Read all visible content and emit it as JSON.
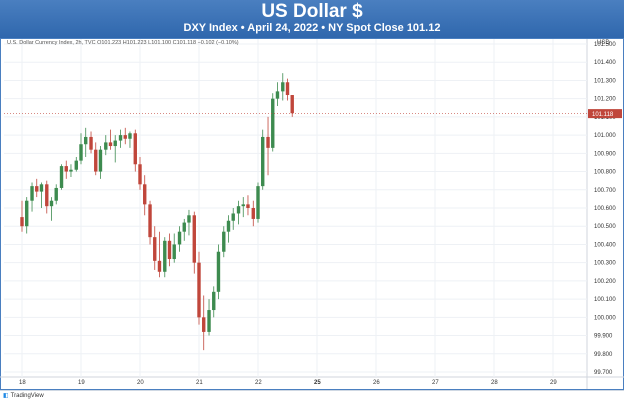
{
  "header": {
    "title": "US Dollar $",
    "subtitle": "DXY Index • April 24, 2022 • NY Spot Close 101.12"
  },
  "chart_header": {
    "series_label": "U.S. Dollar Currency Index, 2h, TVC  O101.223  H101.223  L101.100  C101.118  −0.102 (−0.10%)",
    "currency": "USD"
  },
  "footer": {
    "brand": "TradingView"
  },
  "colors": {
    "up": "#3d8b4f",
    "down": "#c0463b",
    "grid": "#eef1f5",
    "axis_text": "#333333",
    "last_price_bg": "#c0463b",
    "banner": "#2f67ad"
  },
  "chart_data": {
    "type": "candlestick",
    "grid": true,
    "x_ticks": [
      "18",
      "19",
      "20",
      "21",
      "22",
      "25",
      "26",
      "27",
      "28",
      "29"
    ],
    "y_ticks": [
      "99.700",
      "99.800",
      "99.900",
      "100.000",
      "100.100",
      "100.200",
      "100.300",
      "100.400",
      "100.500",
      "100.600",
      "100.700",
      "100.800",
      "100.900",
      "101.000",
      "101.100",
      "101.200",
      "101.300",
      "101.400",
      "101.500"
    ],
    "ylim": [
      99.7,
      101.5
    ],
    "last_price": "101.118",
    "candles": [
      {
        "x": 0.0,
        "o": 100.55,
        "h": 100.64,
        "l": 100.47,
        "c": 100.5
      },
      {
        "x": 0.08,
        "o": 100.5,
        "h": 100.66,
        "l": 100.46,
        "c": 100.64
      },
      {
        "x": 0.17,
        "o": 100.64,
        "h": 100.74,
        "l": 100.58,
        "c": 100.72
      },
      {
        "x": 0.25,
        "o": 100.72,
        "h": 100.76,
        "l": 100.66,
        "c": 100.69
      },
      {
        "x": 0.33,
        "o": 100.69,
        "h": 100.74,
        "l": 100.6,
        "c": 100.73
      },
      {
        "x": 0.42,
        "o": 100.73,
        "h": 100.75,
        "l": 100.57,
        "c": 100.61
      },
      {
        "x": 0.5,
        "o": 100.61,
        "h": 100.66,
        "l": 100.53,
        "c": 100.64
      },
      {
        "x": 0.58,
        "o": 100.64,
        "h": 100.73,
        "l": 100.62,
        "c": 100.71
      },
      {
        "x": 0.67,
        "o": 100.71,
        "h": 100.84,
        "l": 100.7,
        "c": 100.83
      },
      {
        "x": 0.75,
        "o": 100.83,
        "h": 100.86,
        "l": 100.76,
        "c": 100.8
      },
      {
        "x": 0.83,
        "o": 100.8,
        "h": 100.84,
        "l": 100.77,
        "c": 100.81
      },
      {
        "x": 0.92,
        "o": 100.81,
        "h": 100.88,
        "l": 100.8,
        "c": 100.86
      },
      {
        "x": 1.0,
        "o": 100.86,
        "h": 101.01,
        "l": 100.84,
        "c": 100.95
      },
      {
        "x": 1.08,
        "o": 100.95,
        "h": 101.04,
        "l": 100.88,
        "c": 100.99
      },
      {
        "x": 1.17,
        "o": 100.99,
        "h": 101.02,
        "l": 100.9,
        "c": 100.92
      },
      {
        "x": 1.25,
        "o": 100.92,
        "h": 100.96,
        "l": 100.78,
        "c": 100.8
      },
      {
        "x": 1.33,
        "o": 100.8,
        "h": 100.94,
        "l": 100.76,
        "c": 100.92
      },
      {
        "x": 1.42,
        "o": 100.92,
        "h": 101.0,
        "l": 100.89,
        "c": 100.96
      },
      {
        "x": 1.5,
        "o": 100.96,
        "h": 101.03,
        "l": 100.92,
        "c": 100.94
      },
      {
        "x": 1.58,
        "o": 100.94,
        "h": 101.0,
        "l": 100.85,
        "c": 100.97
      },
      {
        "x": 1.67,
        "o": 100.97,
        "h": 101.03,
        "l": 100.93,
        "c": 101.0
      },
      {
        "x": 1.75,
        "o": 101.0,
        "h": 101.04,
        "l": 100.95,
        "c": 100.98
      },
      {
        "x": 1.83,
        "o": 100.98,
        "h": 101.02,
        "l": 100.93,
        "c": 101.01
      },
      {
        "x": 1.92,
        "o": 101.01,
        "h": 101.03,
        "l": 100.8,
        "c": 100.84
      },
      {
        "x": 2.0,
        "o": 100.84,
        "h": 100.88,
        "l": 100.7,
        "c": 100.73
      },
      {
        "x": 2.08,
        "o": 100.73,
        "h": 100.78,
        "l": 100.56,
        "c": 100.62
      },
      {
        "x": 2.17,
        "o": 100.62,
        "h": 100.64,
        "l": 100.4,
        "c": 100.44
      },
      {
        "x": 2.25,
        "o": 100.44,
        "h": 100.5,
        "l": 100.26,
        "c": 100.31
      },
      {
        "x": 2.33,
        "o": 100.31,
        "h": 100.47,
        "l": 100.22,
        "c": 100.25
      },
      {
        "x": 2.42,
        "o": 100.25,
        "h": 100.44,
        "l": 100.22,
        "c": 100.42
      },
      {
        "x": 2.5,
        "o": 100.42,
        "h": 100.46,
        "l": 100.28,
        "c": 100.32
      },
      {
        "x": 2.58,
        "o": 100.32,
        "h": 100.46,
        "l": 100.3,
        "c": 100.4
      },
      {
        "x": 2.67,
        "o": 100.4,
        "h": 100.5,
        "l": 100.36,
        "c": 100.47
      },
      {
        "x": 2.75,
        "o": 100.47,
        "h": 100.54,
        "l": 100.42,
        "c": 100.52
      },
      {
        "x": 2.83,
        "o": 100.52,
        "h": 100.59,
        "l": 100.45,
        "c": 100.56
      },
      {
        "x": 2.92,
        "o": 100.56,
        "h": 100.58,
        "l": 100.24,
        "c": 100.3
      },
      {
        "x": 3.0,
        "o": 100.3,
        "h": 100.36,
        "l": 99.96,
        "c": 100.0
      },
      {
        "x": 3.08,
        "o": 100.0,
        "h": 100.12,
        "l": 99.82,
        "c": 99.92
      },
      {
        "x": 3.17,
        "o": 99.92,
        "h": 100.1,
        "l": 99.9,
        "c": 100.04
      },
      {
        "x": 3.25,
        "o": 100.04,
        "h": 100.17,
        "l": 100.0,
        "c": 100.14
      },
      {
        "x": 3.33,
        "o": 100.14,
        "h": 100.4,
        "l": 100.1,
        "c": 100.36
      },
      {
        "x": 3.42,
        "o": 100.36,
        "h": 100.5,
        "l": 100.33,
        "c": 100.47
      },
      {
        "x": 3.5,
        "o": 100.47,
        "h": 100.56,
        "l": 100.41,
        "c": 100.53
      },
      {
        "x": 3.58,
        "o": 100.53,
        "h": 100.6,
        "l": 100.48,
        "c": 100.57
      },
      {
        "x": 3.67,
        "o": 100.57,
        "h": 100.64,
        "l": 100.51,
        "c": 100.61
      },
      {
        "x": 3.75,
        "o": 100.61,
        "h": 100.66,
        "l": 100.55,
        "c": 100.62
      },
      {
        "x": 3.83,
        "o": 100.62,
        "h": 100.67,
        "l": 100.56,
        "c": 100.6
      },
      {
        "x": 3.92,
        "o": 100.6,
        "h": 100.64,
        "l": 100.5,
        "c": 100.54
      },
      {
        "x": 4.0,
        "o": 100.54,
        "h": 100.74,
        "l": 100.52,
        "c": 100.72
      },
      {
        "x": 4.08,
        "o": 100.72,
        "h": 101.03,
        "l": 100.7,
        "c": 100.99
      },
      {
        "x": 4.17,
        "o": 100.99,
        "h": 101.1,
        "l": 100.78,
        "c": 100.93
      },
      {
        "x": 4.25,
        "o": 100.93,
        "h": 101.23,
        "l": 100.91,
        "c": 101.2
      },
      {
        "x": 4.33,
        "o": 101.2,
        "h": 101.29,
        "l": 101.16,
        "c": 101.24
      },
      {
        "x": 4.42,
        "o": 101.24,
        "h": 101.34,
        "l": 101.19,
        "c": 101.29
      },
      {
        "x": 4.5,
        "o": 101.29,
        "h": 101.31,
        "l": 101.19,
        "c": 101.22
      },
      {
        "x": 4.58,
        "o": 101.22,
        "h": 101.22,
        "l": 101.1,
        "c": 101.12
      }
    ]
  }
}
